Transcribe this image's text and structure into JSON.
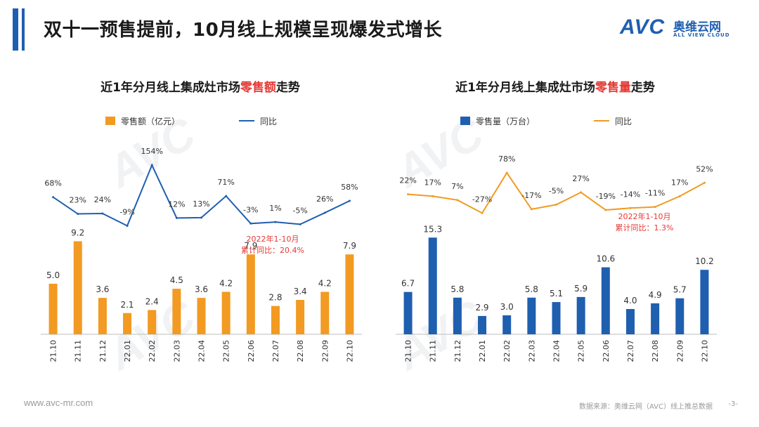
{
  "page": {
    "title": "双十一预售提前，10月线上规模呈现爆发式增长",
    "brand_mark": "AVC",
    "brand_cn": "奥维云网",
    "brand_en": "ALL VIEW CLOUD",
    "website": "www.avc-mr.com",
    "source": "数据来源：奥维云网（AVC）线上推总数据",
    "page_number": "-3-"
  },
  "colors": {
    "title_accent": "#1f5fb0",
    "highlight_red": "#e53935",
    "orange": "#f29a21",
    "blue": "#1f5fb0"
  },
  "chart_data": [
    {
      "type": "bar",
      "title_prefix": "近1年分月线上集成灶市场",
      "title_highlight": "零售额",
      "title_suffix": "走势",
      "categories": [
        "21.10",
        "21.11",
        "21.12",
        "22.01",
        "22.02",
        "22.03",
        "22.04",
        "22.05",
        "22.06",
        "22.07",
        "22.08",
        "22.09",
        "22.10"
      ],
      "series": [
        {
          "name": "零售额（亿元）",
          "type": "bar",
          "values": [
            5.0,
            9.2,
            3.6,
            2.1,
            2.4,
            4.5,
            3.6,
            4.2,
            7.9,
            2.8,
            3.4,
            4.2,
            7.9
          ],
          "labels": [
            "5.0",
            "9.2",
            "3.6",
            "2.1",
            "2.4",
            "4.5",
            "3.6",
            "4.2",
            "7.9",
            "2.8",
            "3.4",
            "4.2",
            "7.9"
          ]
        },
        {
          "name": "同比",
          "type": "line",
          "values": [
            68,
            23,
            24,
            -9,
            154,
            12,
            13,
            71,
            -3,
            1,
            -5,
            26,
            58
          ],
          "labels": [
            "68%",
            "23%",
            "24%",
            "-9%",
            "154%",
            "12%",
            "13%",
            "71%",
            "-3%",
            "1%",
            "-5%",
            "26%",
            "58%"
          ]
        }
      ],
      "bar_color": "#f29a21",
      "line_color": "#1f5fb0",
      "annotation": {
        "line1": "2022年1-10月",
        "line2": "累计同比：20.4%"
      },
      "legend_position": "top"
    },
    {
      "type": "bar",
      "title_prefix": "近1年分月线上集成灶市场",
      "title_highlight": "零售量",
      "title_suffix": "走势",
      "categories": [
        "21.10",
        "21.11",
        "21.12",
        "22.01",
        "22.02",
        "22.03",
        "22.04",
        "22.05",
        "22.06",
        "22.07",
        "22.08",
        "22.09",
        "22.10"
      ],
      "series": [
        {
          "name": "零售量（万台）",
          "type": "bar",
          "values": [
            6.7,
            15.3,
            5.8,
            2.9,
            3.0,
            5.8,
            5.1,
            5.9,
            10.6,
            4.0,
            4.9,
            5.7,
            10.2
          ],
          "labels": [
            "6.7",
            "15.3",
            "5.8",
            "2.9",
            "3.0",
            "5.8",
            "5.1",
            "5.9",
            "10.6",
            "4.0",
            "4.9",
            "5.7",
            "10.2"
          ]
        },
        {
          "name": "同比",
          "type": "line",
          "values": [
            22,
            17,
            7,
            -27,
            78,
            -17,
            -5,
            27,
            -19,
            -14,
            -11,
            17,
            52
          ],
          "labels": [
            "22%",
            "17%",
            "7%",
            "-27%",
            "78%",
            "-17%",
            "-5%",
            "27%",
            "-19%",
            "-14%",
            "-11%",
            "17%",
            "52%"
          ]
        }
      ],
      "bar_color": "#1f5fb0",
      "line_color": "#f29a21",
      "annotation": {
        "line1": "2022年1-10月",
        "line2": "累计同比：1.3%"
      },
      "legend_position": "top"
    }
  ]
}
